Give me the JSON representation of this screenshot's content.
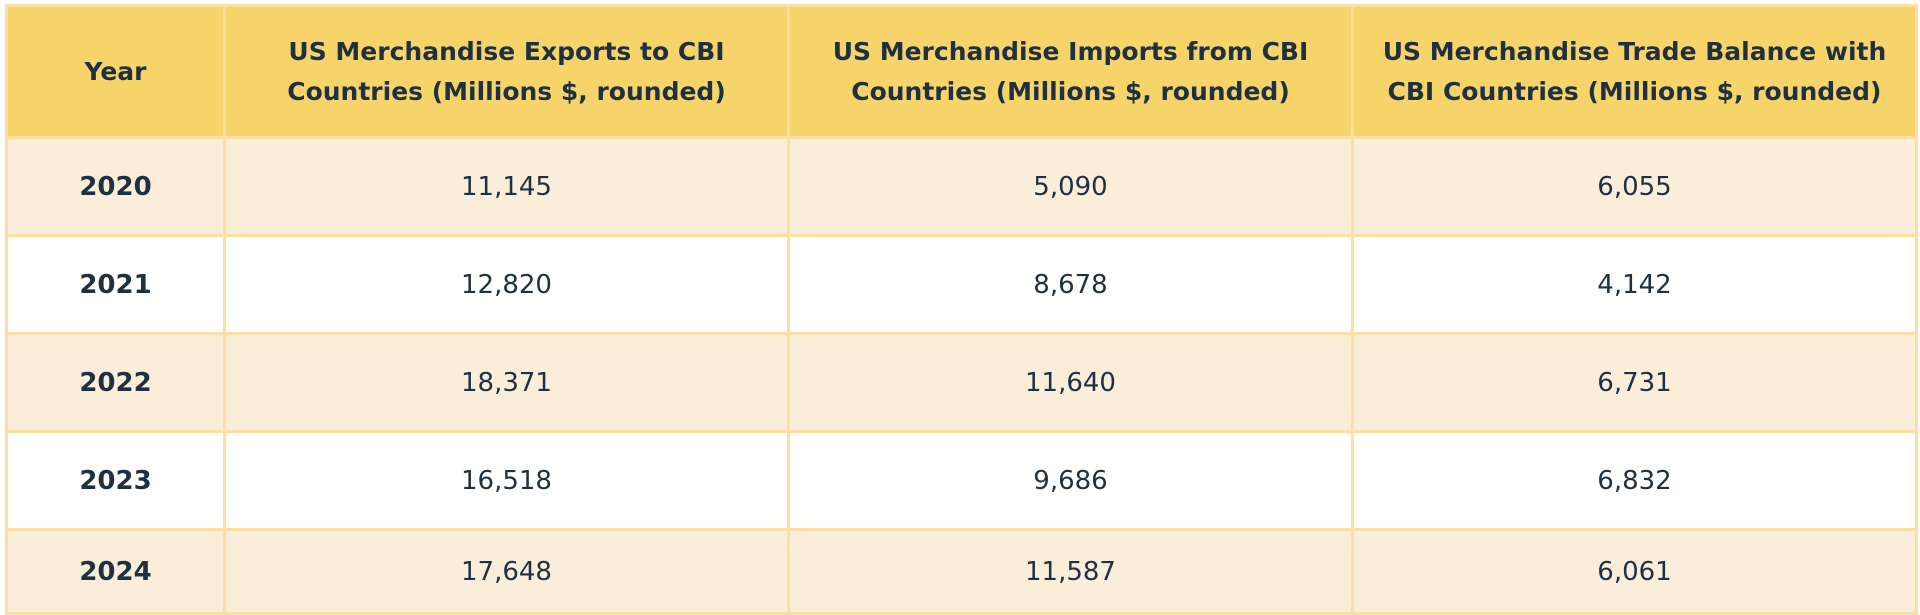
{
  "table": {
    "headers": [
      "Year",
      "US Merchandise Exports to CBI Countries (Millions $, rounded)",
      "US Merchandise Imports from CBI Countries (Millions $, rounded)",
      "US Merchandise Trade Balance with CBI Countries (Millions $, rounded)"
    ],
    "rows": [
      {
        "year": "2020",
        "exports": "11,145",
        "imports": "5,090",
        "balance": "6,055"
      },
      {
        "year": "2021",
        "exports": "12,820",
        "imports": "8,678",
        "balance": "4,142"
      },
      {
        "year": "2022",
        "exports": "18,371",
        "imports": "11,640",
        "balance": "6,731"
      },
      {
        "year": "2023",
        "exports": "16,518",
        "imports": "9,686",
        "balance": "6,832"
      },
      {
        "year": "2024",
        "exports": "17,648",
        "imports": "11,587",
        "balance": "6,061"
      }
    ]
  },
  "colors": {
    "header_bg": "#f7d46a",
    "row_alt_bg": "#faeedb",
    "row_bg": "#ffffff",
    "border": "#fbdfa3",
    "text": "#1f3140"
  }
}
